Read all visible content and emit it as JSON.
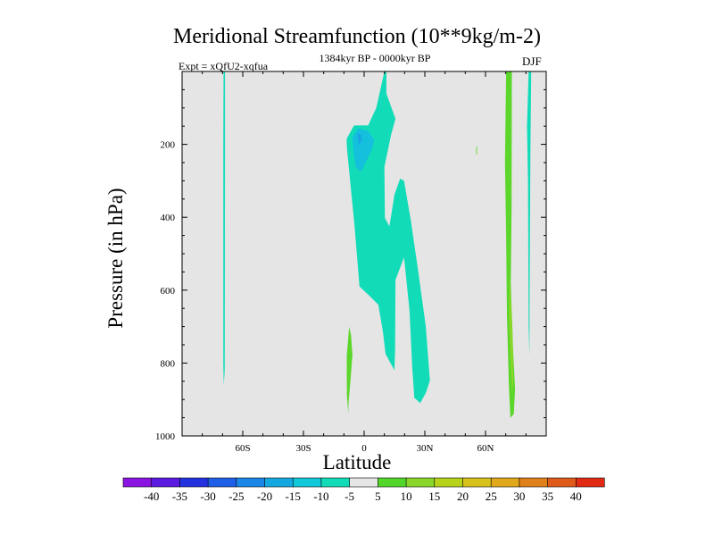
{
  "chart_data": {
    "type": "contour",
    "title": "Meridional Streamfunction (10**9kg/m-2)",
    "subtitle_left": "Expt = xQfU2-xqfua",
    "subtitle_center": "1384kyr BP - 0000kyr BP",
    "subtitle_right": "DJF",
    "xlabel": "Latitude",
    "ylabel": "Pressure (in hPa)",
    "xlim": [
      -90,
      90
    ],
    "ylim": [
      1000,
      0
    ],
    "x_ticks": [
      {
        "value": -60,
        "label": "60S"
      },
      {
        "value": -30,
        "label": "30S"
      },
      {
        "value": 0,
        "label": "0"
      },
      {
        "value": 30,
        "label": "30N"
      },
      {
        "value": 60,
        "label": "60N"
      }
    ],
    "y_ticks": [
      {
        "value": 200,
        "label": "200"
      },
      {
        "value": 400,
        "label": "400"
      },
      {
        "value": 600,
        "label": "600"
      },
      {
        "value": 800,
        "label": "800"
      },
      {
        "value": 1000,
        "label": "1000"
      }
    ],
    "background_color": "#e5e5e5",
    "colorbar": {
      "levels": [
        "-40",
        "-35",
        "-30",
        "-25",
        "-20",
        "-15",
        "-10",
        "-5",
        "5",
        "10",
        "15",
        "20",
        "25",
        "30",
        "35",
        "40"
      ],
      "colors": [
        "#8a14e0",
        "#5a1ae0",
        "#2230e0",
        "#1f5fe8",
        "#1a86e8",
        "#14a8e0",
        "#10c8d8",
        "#12dcb8",
        "#e6e6e6",
        "#52d62a",
        "#8ad62a",
        "#b8d21a",
        "#d6c21a",
        "#e0a81a",
        "#e0801a",
        "#e05a1a",
        "#e02a14"
      ]
    },
    "regions": [
      {
        "name": "south-polar-negative-streak",
        "level": "-10 to -5",
        "color": "#12dcb8",
        "points": [
          [
            -69.5,
            0
          ],
          [
            -68.8,
            0
          ],
          [
            -68.8,
            200
          ],
          [
            -68.9,
            820
          ],
          [
            -69.4,
            860
          ],
          [
            -69.6,
            800
          ],
          [
            -69.6,
            200
          ]
        ]
      },
      {
        "name": "tropical-upper-negative-cell",
        "level": "-10 to -5",
        "color": "#12dcb8",
        "points": [
          [
            -8.5,
            210
          ],
          [
            -8.7,
            185
          ],
          [
            -5,
            148
          ],
          [
            2,
            148
          ],
          [
            6,
            100
          ],
          [
            10,
            0
          ],
          [
            11,
            0
          ],
          [
            11,
            60
          ],
          [
            15.5,
            130
          ],
          [
            13.3,
            175
          ],
          [
            10,
            262
          ],
          [
            10.3,
            402
          ],
          [
            12.5,
            425
          ],
          [
            15,
            338
          ],
          [
            17.8,
            294
          ],
          [
            19.7,
            300
          ],
          [
            23.1,
            410
          ],
          [
            26.5,
            540
          ],
          [
            30.5,
            700
          ],
          [
            32.5,
            848
          ],
          [
            30.5,
            882
          ],
          [
            27.7,
            910
          ],
          [
            24.8,
            895
          ],
          [
            23.8,
            812
          ],
          [
            22.4,
            655
          ],
          [
            19.7,
            510
          ],
          [
            15.5,
            572
          ],
          [
            15.3,
            760
          ],
          [
            15,
            820
          ],
          [
            10.6,
            775
          ],
          [
            9.3,
            715
          ],
          [
            7,
            640
          ],
          [
            2,
            612
          ],
          [
            -2.3,
            590
          ],
          [
            -4.8,
            420
          ]
        ]
      },
      {
        "name": "tropical-upper-core",
        "level": "-15 to -10",
        "color": "#14c0dc",
        "points": [
          [
            -5.8,
            180
          ],
          [
            -3,
            156
          ],
          [
            2,
            163
          ],
          [
            5,
            188
          ],
          [
            3.8,
            215
          ],
          [
            0.3,
            255
          ],
          [
            -1.7,
            275
          ],
          [
            -4.2,
            262
          ],
          [
            -5.4,
            215
          ]
        ]
      },
      {
        "name": "tropical-upper-inner-core",
        "level": "-20 to -15",
        "color": "#1aa6e6",
        "points": [
          [
            -3.5,
            172
          ],
          [
            -1.8,
            170
          ],
          [
            -1,
            190
          ],
          [
            -2.6,
            200
          ]
        ]
      },
      {
        "name": "southern-tropics-positive",
        "level": "5 to 10",
        "color": "#5cd62a",
        "points": [
          [
            -7.4,
            700
          ],
          [
            -6.5,
            723
          ],
          [
            -5.8,
            778
          ],
          [
            -6.8,
            850
          ],
          [
            -7.7,
            910
          ],
          [
            -7.8,
            938
          ],
          [
            -8.5,
            890
          ],
          [
            -8.6,
            780
          ],
          [
            -8.0,
            740
          ]
        ]
      },
      {
        "name": "northern-subtropic-positive-speck",
        "level": "5 to 10",
        "color": "#5cd62a",
        "points": [
          [
            55.4,
            208
          ],
          [
            55.8,
            205
          ],
          [
            55.8,
            228
          ],
          [
            55.4,
            226
          ]
        ]
      },
      {
        "name": "north-polar-positive-streak",
        "level": "5 to 10",
        "color": "#5cd62a",
        "points": [
          [
            70.2,
            0
          ],
          [
            73,
            0
          ],
          [
            72.9,
            380
          ],
          [
            72.5,
            580
          ],
          [
            73.6,
            760
          ],
          [
            74.6,
            870
          ],
          [
            74,
            940
          ],
          [
            72.3,
            950
          ],
          [
            71.6,
            870
          ],
          [
            70.6,
            670
          ],
          [
            70.2,
            450
          ],
          [
            69.6,
            250
          ]
        ]
      },
      {
        "name": "north-polar-positive-core",
        "level": "10 to 15",
        "color": "#8ad62a",
        "points": [
          [
            71.8,
            560
          ],
          [
            72.3,
            600
          ],
          [
            73.3,
            700
          ],
          [
            73.8,
            850
          ],
          [
            73.2,
            880
          ],
          [
            72.4,
            800
          ],
          [
            71.6,
            680
          ]
        ]
      },
      {
        "name": "north-polar-negative-streak",
        "level": "-10 to -5",
        "color": "#12dcb8",
        "points": [
          [
            81.3,
            0
          ],
          [
            82.6,
            0
          ],
          [
            82.2,
            220
          ],
          [
            81.8,
            600
          ],
          [
            81.7,
            780
          ],
          [
            81.3,
            700
          ],
          [
            81.0,
            300
          ],
          [
            80.5,
            150
          ]
        ]
      }
    ]
  }
}
